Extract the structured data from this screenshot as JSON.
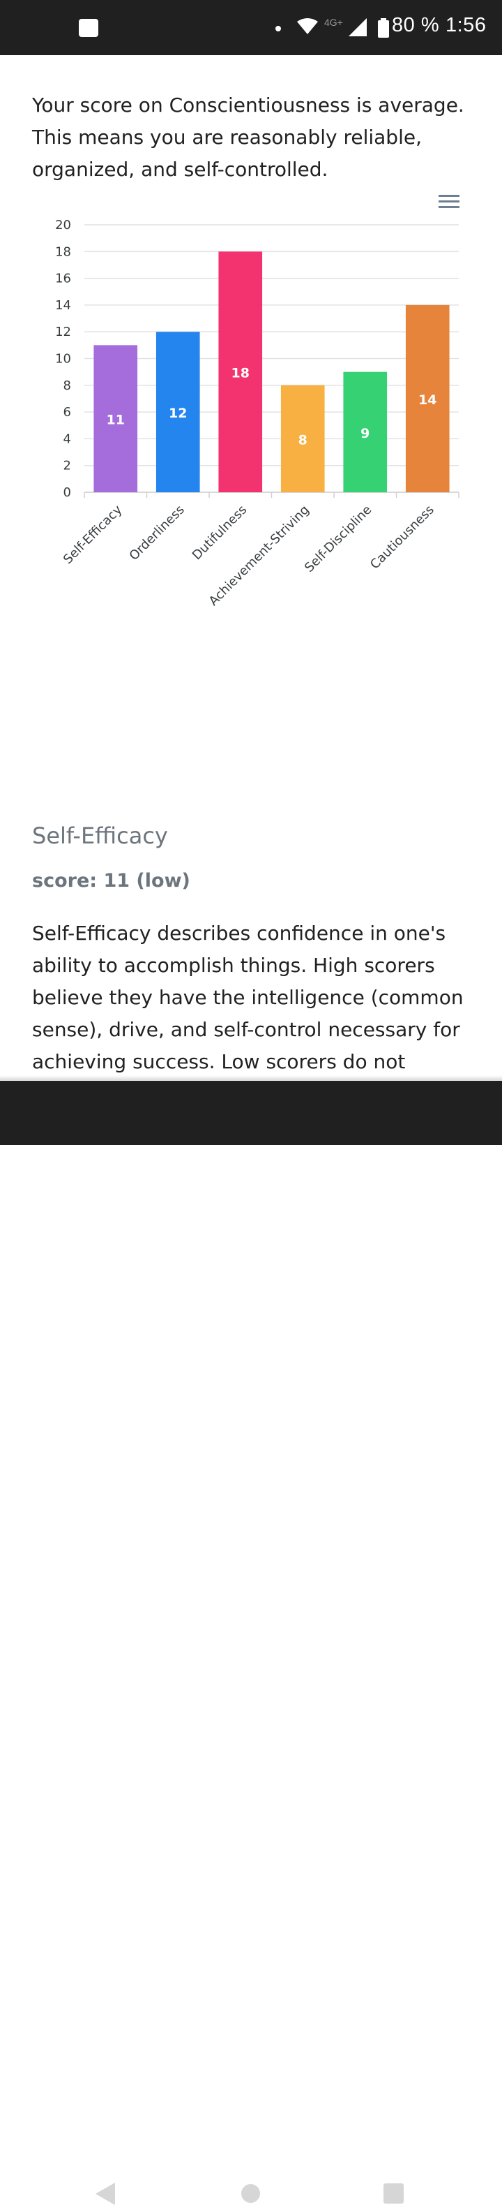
{
  "status_bar": {
    "network_label": "4G+",
    "battery_text": "80 %",
    "time": "1:56"
  },
  "intro_text": "Your score on Conscientiousness is average. This means you are reasonably reliable, organized, and self-controlled.",
  "chart_menu_icon": "hamburger-menu-icon",
  "chart_data": {
    "type": "bar",
    "categories": [
      "Self-Efficacy",
      "Orderliness",
      "Dutifulness",
      "Achievement-Striving",
      "Self-Discipline",
      "Cautiousness"
    ],
    "values": [
      11,
      12,
      18,
      8,
      9,
      14
    ],
    "colors": [
      "#a56ddb",
      "#2585ee",
      "#f2336f",
      "#f7b041",
      "#36d173",
      "#e7843c"
    ],
    "ylim": [
      0,
      20
    ],
    "yticks": [
      "0",
      "2",
      "4",
      "6",
      "8",
      "10",
      "12",
      "14",
      "16",
      "18",
      "20"
    ],
    "data_labels": true,
    "grid": true
  },
  "facet": {
    "title": "Self-Efficacy",
    "score": "score: 11 (low)",
    "description": "Self-Efficacy describes confidence in one's ability to accomplish things. High scorers believe they have the intelligence (common sense), drive, and self-control necessary for achieving success. Low scorers do not"
  },
  "nav_bar": {
    "back_icon": "back-triangle-icon",
    "home_icon": "home-circle-icon",
    "recents_icon": "recents-square-icon"
  }
}
